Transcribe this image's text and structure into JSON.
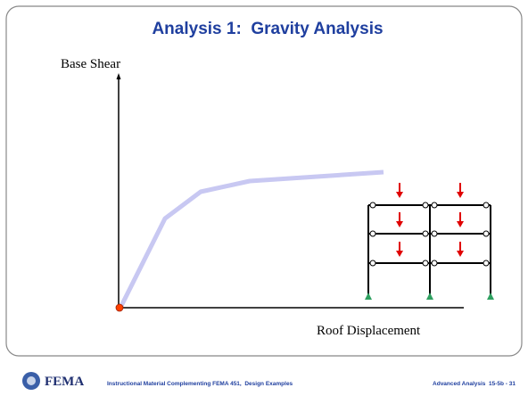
{
  "slide": {
    "title": "Analysis 1:  Gravity Analysis",
    "y_axis_label": "Base Shear",
    "x_axis_label": "Roof Displacement"
  },
  "footer": {
    "logo": "FEMA",
    "center": "Instructional Material Complementing FEMA 451,  Design Examples",
    "right": "Advanced Analysis  15-5b - 31"
  }
}
